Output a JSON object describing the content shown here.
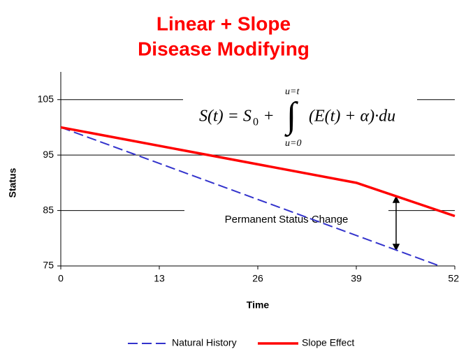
{
  "chart_data": {
    "type": "line",
    "title": [
      "Linear + Slope",
      "Disease Modifying"
    ],
    "xlabel": "Time",
    "ylabel": "Status",
    "xlim": [
      0,
      52
    ],
    "xticks": [
      0,
      13,
      26,
      39,
      52
    ],
    "ylim": [
      75,
      110
    ],
    "yticks": [
      75,
      85,
      95,
      105
    ],
    "grid": true,
    "legend": "bottom",
    "series": [
      {
        "name": "Natural History",
        "color": "#3333cc",
        "dash": true,
        "x": [
          0,
          13,
          26,
          39,
          50
        ],
        "values": [
          100,
          93.5,
          87,
          80.5,
          75
        ]
      },
      {
        "name": "Slope Effect",
        "color": "#ff0000",
        "dash": false,
        "x": [
          0,
          39,
          52
        ],
        "values": [
          100,
          90,
          84
        ]
      }
    ],
    "annotation": "Permanent Status Change",
    "formula": {
      "lhs": "S(t) = S",
      "sub": "0",
      "plus": "+",
      "integral": "∫",
      "integrand": "(E(t) + α)·du",
      "upper": "u=t",
      "lower": "u=0"
    }
  }
}
